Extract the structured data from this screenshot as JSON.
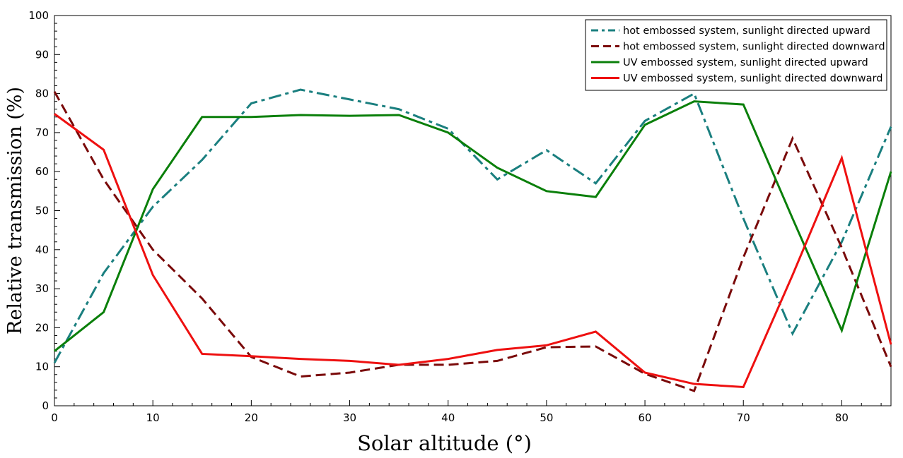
{
  "chart_data": {
    "type": "line",
    "xlabel": "Solar altitude (°)",
    "ylabel": "Relative transmission (%)",
    "xlim": [
      0,
      85
    ],
    "ylim": [
      0,
      100
    ],
    "xticks": [
      0,
      10,
      20,
      30,
      40,
      50,
      60,
      70,
      80
    ],
    "yticks": [
      0,
      10,
      20,
      30,
      40,
      50,
      60,
      70,
      80,
      90,
      100
    ],
    "grid": false,
    "legend_position": "top-right",
    "x": [
      0,
      5,
      10,
      15,
      20,
      25,
      30,
      35,
      40,
      45,
      50,
      55,
      60,
      65,
      70,
      75,
      80,
      85
    ],
    "series": [
      {
        "name": "hot embossed system, sunlight directed upward",
        "color": "#1a7f7f",
        "dash": "dashdot",
        "values": [
          11,
          34,
          51,
          63,
          77.5,
          81,
          78.5,
          76,
          71,
          58,
          65.5,
          57,
          73,
          80,
          48,
          18.5,
          42,
          71.5
        ]
      },
      {
        "name": "hot embossed system, sunlight directed downward",
        "color": "#7a0a0a",
        "dash": "dashed",
        "values": [
          80.5,
          58,
          40,
          27.5,
          12.5,
          7.5,
          8.5,
          10.5,
          10.5,
          11.5,
          15,
          15.2,
          8.2,
          3.8,
          38,
          68.5,
          40.5,
          10
        ]
      },
      {
        "name": "UV embossed system, sunlight directed upward",
        "color": "#0a7f0a",
        "dash": "solid",
        "values": [
          14,
          24,
          55.5,
          74,
          74,
          74.5,
          74.3,
          74.5,
          70,
          61,
          55,
          53.5,
          72,
          78,
          77.2,
          48,
          19.3,
          60
        ]
      },
      {
        "name": "UV embossed system, sunlight directed downward",
        "color": "#ee1010",
        "dash": "solid",
        "values": [
          74.8,
          65.6,
          33.5,
          13.3,
          12.7,
          12,
          11.5,
          10.5,
          12,
          14.3,
          15.5,
          19,
          8.5,
          5.6,
          4.8,
          33.5,
          63.5,
          15.7
        ]
      }
    ]
  }
}
